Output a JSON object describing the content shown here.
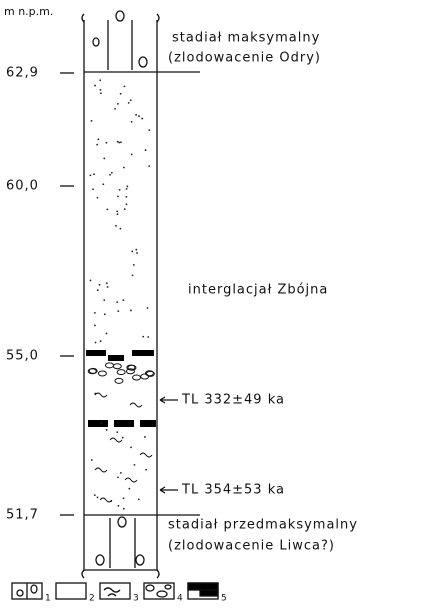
{
  "axis_label": "m n.p.m.",
  "elevations": [
    "62,9",
    "60,0",
    "55,0",
    "51,7"
  ],
  "units": [
    {
      "lines": [
        "stadiał maksymalny",
        "(zlodowacenie Odry)"
      ]
    },
    {
      "lines": [
        "interglacjał Zbójna"
      ]
    },
    {
      "lines": [
        "stadiał przedmaksymalny",
        "(zlodowacenie Liwca?)"
      ]
    }
  ],
  "dates": [
    "TL 332±49 ka",
    "TL 354±53 ka"
  ],
  "legend": [
    "1",
    "2",
    "3",
    "4",
    "5"
  ]
}
